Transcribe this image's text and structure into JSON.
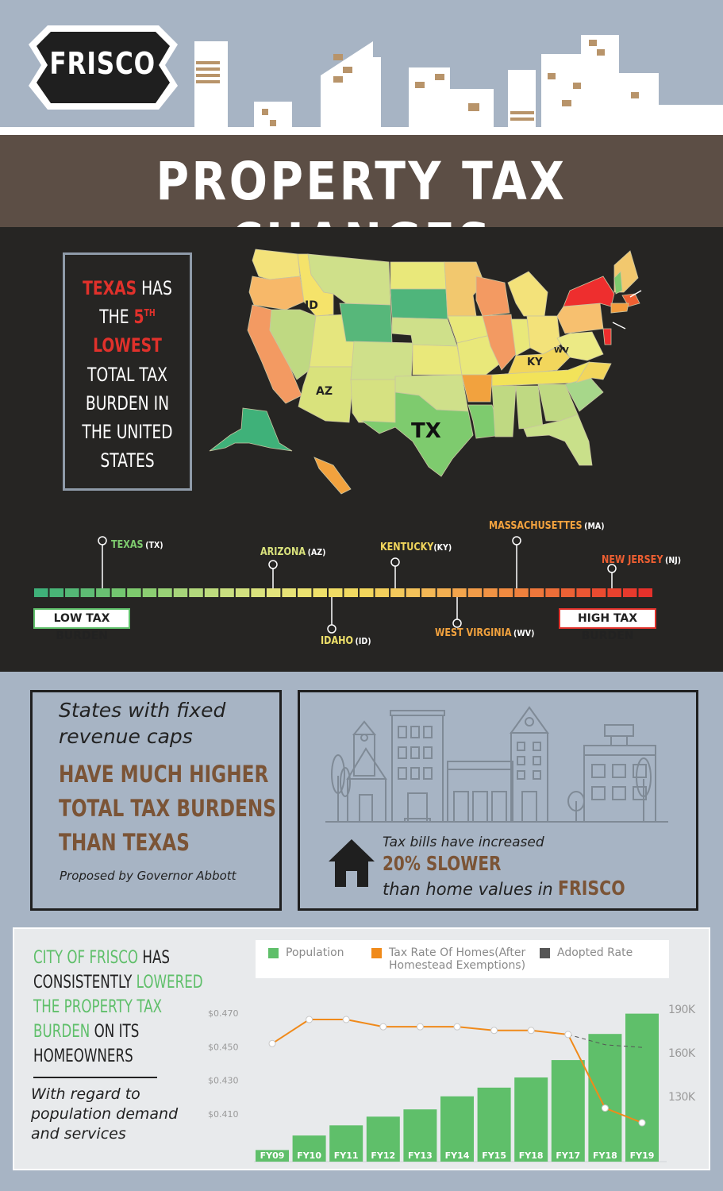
{
  "header": {
    "logo_text": "FRISCO",
    "title": "PROPERTY TAX CHANGES"
  },
  "map": {
    "state_labels": [
      "ID",
      "AZ",
      "TX",
      "KY",
      "WV"
    ],
    "callout": {
      "line1_red": "TEXAS",
      "line1_rest": " HAS",
      "line2_rest": "THE ",
      "line2_red": "5",
      "line2_sup": "TH",
      "line3_red": "LOWEST",
      "line4": "TOTAL TAX",
      "line5": "BURDEN IN",
      "line6": "THE UNITED",
      "line7": "STATES"
    }
  },
  "scale": {
    "low_label": "LOW TAX BURDEN",
    "high_label": "HIGH TAX BURDEN",
    "markers": [
      {
        "name": "TEXAS",
        "abbr": "(TX)",
        "color": "#7ecb6e"
      },
      {
        "name": "ARIZONA",
        "abbr": "(AZ)",
        "color": "#d9e27c"
      },
      {
        "name": "IDAHO",
        "abbr": "(ID)",
        "color": "#efe16a"
      },
      {
        "name": "KENTUCKY",
        "abbr": "(KY)",
        "color": "#f2d65c"
      },
      {
        "name": "WEST VIRGINIA",
        "abbr": "(WV)",
        "color": "#f2a23e"
      },
      {
        "name": "MASSACHUSETTES",
        "abbr": "(MA)",
        "color": "#f2a23e"
      },
      {
        "name": "NEW JERSEY",
        "abbr": "(NJ)",
        "color": "#ee5f32"
      }
    ]
  },
  "caps_panel": {
    "italic": "States with fixed revenue caps",
    "bold1": "HAVE MUCH HIGHER",
    "bold2": "TOTAL TAX BURDENS",
    "bold3": "THAN TEXAS",
    "source": "Proposed by Governor Abbott"
  },
  "bills_panel": {
    "line1": "Tax bills have increased",
    "line2": "20% SLOWER",
    "line3": "than home values in ",
    "line3_bold": "FRISCO"
  },
  "frisco": {
    "l1g": "CITY OF FRISCO",
    "l1": " HAS",
    "l2": "CONSISTENTLY ",
    "l2g": "LOWERED",
    "l3g": "THE PROPERTY TAX",
    "l4g": "BURDEN",
    "l4": " ON ITS",
    "l5": "HOMEOWNERS",
    "note": "With regard to population demand and services"
  },
  "colors": {
    "population": "#5fbf6a",
    "tax_rate": "#f08a1a",
    "adopted": "#555555",
    "brown": "#7b5436",
    "red": "#e0312b"
  },
  "chart_data": {
    "type": "bar",
    "categories": [
      "FY09",
      "FY10",
      "FY11",
      "FY12",
      "FY13",
      "FY14",
      "FY15",
      "FY18",
      "FY17",
      "FY18",
      "FY19"
    ],
    "legend": [
      "Population",
      "Tax Rate Of Homes(After Homestead Exemptions)",
      "Adopted Rate"
    ],
    "left_ticks": [
      "$0.470",
      "$0.450",
      "$0.430",
      "$0.410"
    ],
    "right_ticks": [
      "190K",
      "160K",
      "130K"
    ],
    "series": [
      {
        "name": "Population",
        "type": "bar",
        "axis": "right",
        "values": [
          93000,
          103000,
          110000,
          116000,
          121000,
          130000,
          136000,
          143000,
          155000,
          173000,
          187000
        ]
      },
      {
        "name": "Tax Rate Of Homes(After Homestead Exemptions)",
        "type": "line",
        "axis": "left",
        "values": [
          0.4519,
          0.4662,
          0.4662,
          0.4619,
          0.4619,
          0.4619,
          0.4597,
          0.4597,
          0.4573,
          0.4135,
          0.4048
        ]
      },
      {
        "name": "Adopted Rate",
        "type": "line",
        "axis": "left",
        "dashed": true,
        "values": [
          null,
          null,
          null,
          null,
          null,
          null,
          null,
          null,
          0.4573,
          0.4512,
          0.4496
        ]
      }
    ],
    "ylim_left": [
      0.397,
      0.48
    ],
    "ylim_right": [
      85000,
      195000
    ]
  }
}
